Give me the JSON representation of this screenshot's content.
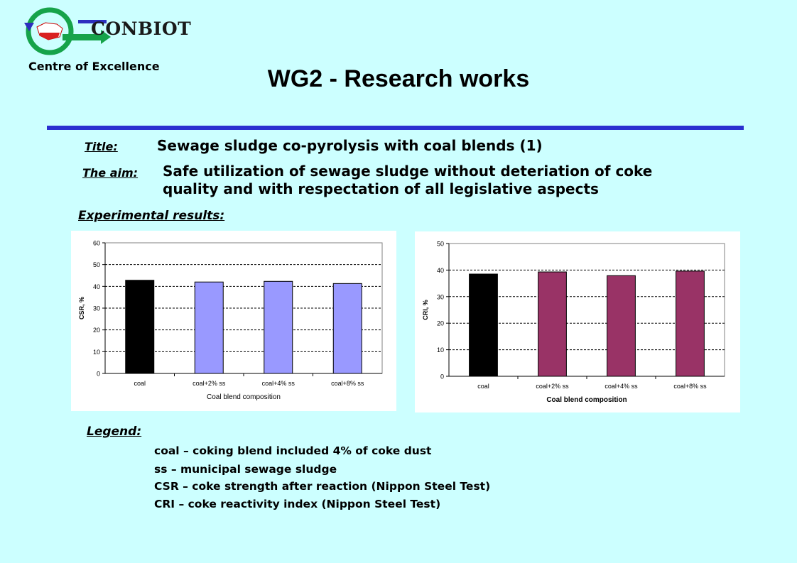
{
  "header": {
    "logo_text": "CONBIOT",
    "logo_subtitle": "Centre of Excellence",
    "title": "WG2 - Research works"
  },
  "info": {
    "title_label": "Title:",
    "title_value": "Sewage sludge co-pyrolysis with coal blends (1)",
    "aim_label": "The aim:",
    "aim_line1": "Safe utilization of sewage sludge without deteriation of coke",
    "aim_line2": "quality and with respectation of all legislative aspects",
    "results_label": "Experimental results:"
  },
  "legend": {
    "label": "Legend:",
    "items": [
      "coal – coking blend included 4% of coke dust",
      "ss – municipal sewage sludge",
      "CSR – coke strength after reaction (Nippon Steel Test)",
      "CRI – coke reactivity index (Nippon Steel Test)"
    ]
  },
  "colors": {
    "rule": "#2b2fd0",
    "background": "#ccffff"
  },
  "chart_data": [
    {
      "type": "bar",
      "categories": [
        "coal",
        "coal+2% ss",
        "coal+4% ss",
        "coal+8% ss"
      ],
      "values": [
        42.8,
        42.0,
        42.3,
        41.3
      ],
      "bar_colors": [
        "#000000",
        "#9999ff",
        "#9999ff",
        "#9999ff"
      ],
      "xlabel": "Coal blend composition",
      "ylabel": "CSR, %",
      "ylim": [
        0,
        60
      ],
      "yticks": [
        0,
        10,
        20,
        30,
        40,
        50,
        60
      ],
      "grid": true
    },
    {
      "type": "bar",
      "categories": [
        "coal",
        "coal+2% ss",
        "coal+4% ss",
        "coal+8% ss"
      ],
      "values": [
        38.5,
        39.3,
        37.9,
        39.6
      ],
      "bar_colors": [
        "#000000",
        "#993366",
        "#993366",
        "#993366"
      ],
      "xlabel": "Coal blend composition",
      "ylabel": "CRI, %",
      "ylim": [
        0,
        50
      ],
      "yticks": [
        0,
        10,
        20,
        30,
        40,
        50
      ],
      "grid": true
    }
  ]
}
